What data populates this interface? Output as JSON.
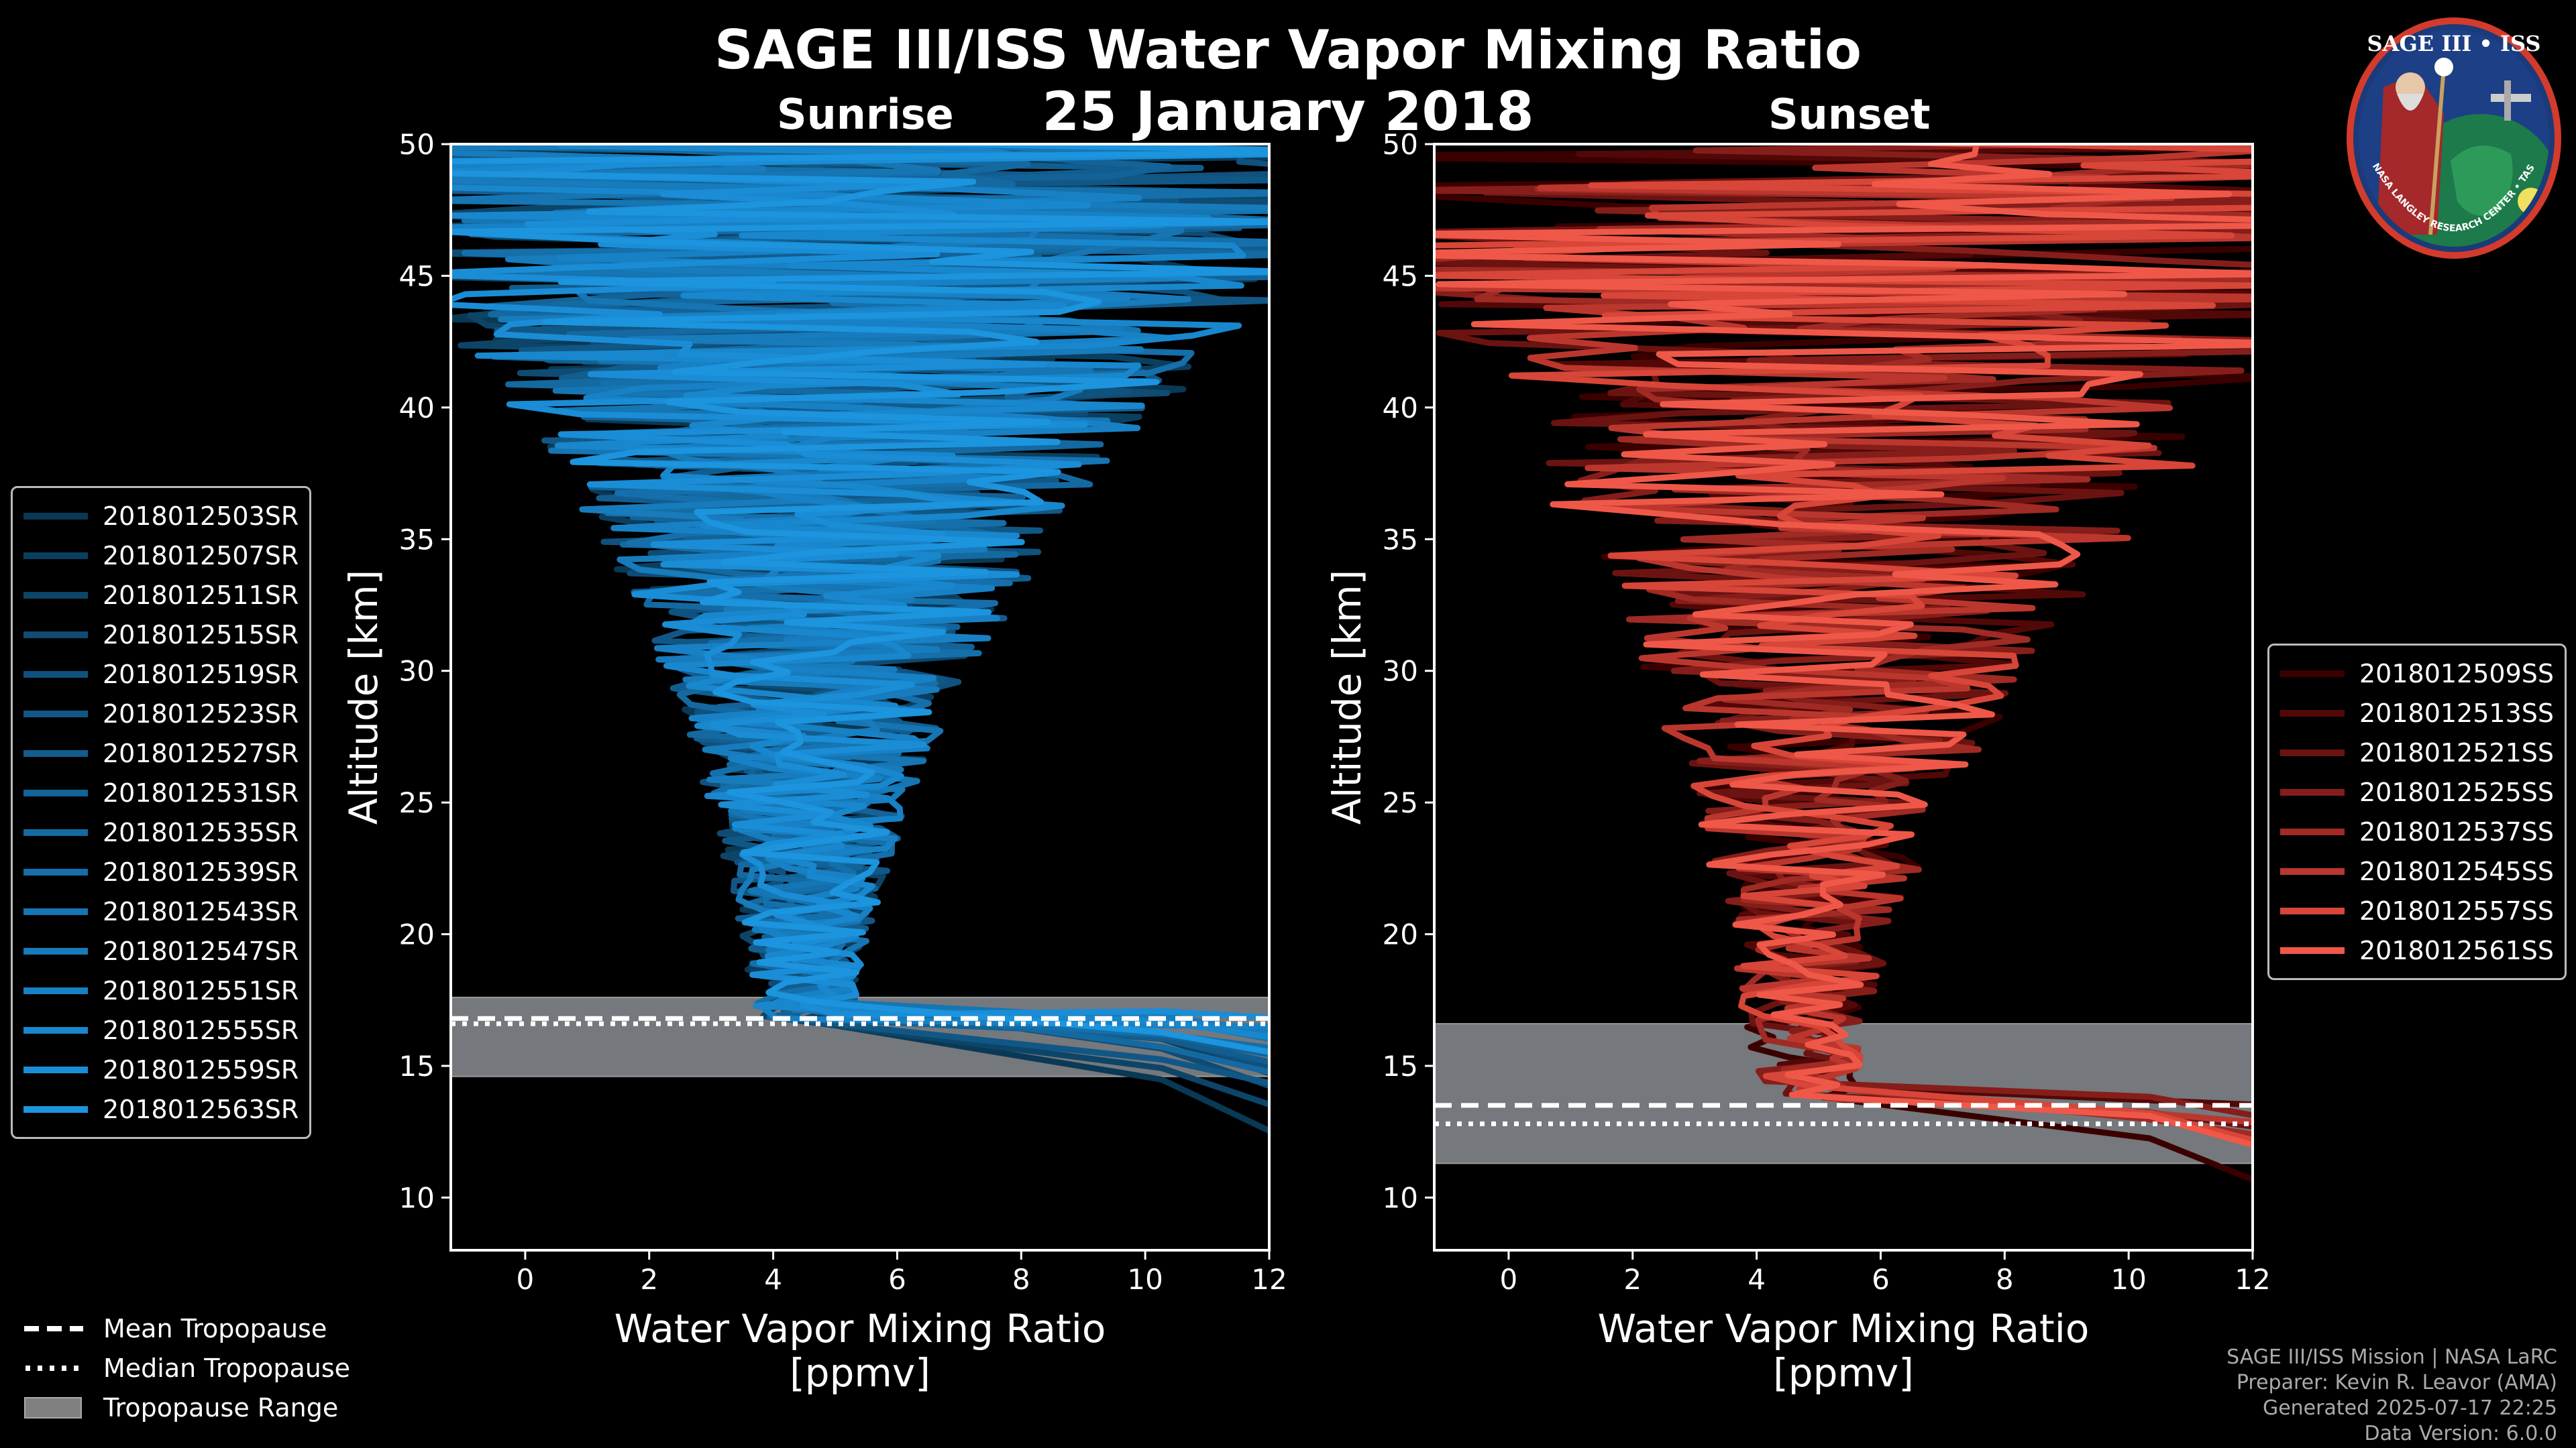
{
  "title": "SAGE III/ISS Water Vapor Mixing Ratio",
  "date": "25 January 2018",
  "logo": {
    "text": "SAGE III • ISS",
    "ring_text": "BALL • NASA LANGLEY RESEARCH CENTER • TAS-I • ESA"
  },
  "credits": [
    "SAGE III/ISS Mission | NASA LaRC",
    "Preparer: Kevin R. Leavor (AMA)",
    "Generated 2025-07-17 22:25",
    "Data Version: 6.0.0"
  ],
  "bottom_legend": [
    {
      "label": "Mean Tropopause",
      "style": "dashed"
    },
    {
      "label": "Median Tropopause",
      "style": "dotted"
    },
    {
      "label": "Tropopause Range",
      "style": "patch"
    }
  ],
  "chart_data": [
    {
      "type": "line",
      "subtitle": "Sunrise",
      "xlabel": "Water Vapor Mixing Ratio\n[ppmv]",
      "xlabel_lines": [
        "Water Vapor Mixing Ratio",
        "[ppmv]"
      ],
      "ylabel": "Altitude [km]",
      "xlim": [
        -1.2,
        12
      ],
      "ylim": [
        8,
        50
      ],
      "xticks": [
        "0",
        "2",
        "4",
        "6",
        "8",
        "10",
        "12"
      ],
      "yticks": [
        "10",
        "15",
        "20",
        "25",
        "30",
        "35",
        "40",
        "45",
        "50"
      ],
      "tropopause": {
        "mean": 16.8,
        "median": 16.6,
        "min": 14.6,
        "max": 17.6
      },
      "spread": {
        "center_top": 5.5,
        "center_mid": 4.5,
        "width_top": 9,
        "width_mid": 2.6,
        "low_alt": 17
      },
      "series": [
        {
          "name": "2018012503SR",
          "color": "#093955",
          "tail_x": 12,
          "tail_alt": 12.2
        },
        {
          "name": "2018012507SR",
          "color": "#0b3f5f",
          "tail_x": 12,
          "tail_alt": 14.5
        },
        {
          "name": "2018012511SR",
          "color": "#0d4569",
          "tail_x": 12,
          "tail_alt": 13.3
        },
        {
          "name": "2018012515SR",
          "color": "#0f4b73",
          "tail_x": 12,
          "tail_alt": 14.0
        },
        {
          "name": "2018012519SR",
          "color": "#10517d",
          "tail_x": 12,
          "tail_alt": 14.8
        },
        {
          "name": "2018012523SR",
          "color": "#115786",
          "tail_x": 12,
          "tail_alt": 14.2
        },
        {
          "name": "2018012527SR",
          "color": "#125d8f",
          "tail_x": 12,
          "tail_alt": 15.0
        },
        {
          "name": "2018012531SR",
          "color": "#136398",
          "tail_x": 12,
          "tail_alt": 15.3
        },
        {
          "name": "2018012535SR",
          "color": "#1469a1",
          "tail_x": 12,
          "tail_alt": 14.6
        },
        {
          "name": "2018012539SR",
          "color": "#156faa",
          "tail_x": 12,
          "tail_alt": 15.6
        },
        {
          "name": "2018012543SR",
          "color": "#1675b3",
          "tail_x": 12,
          "tail_alt": 15.9
        },
        {
          "name": "2018012547SR",
          "color": "#177bbc",
          "tail_x": 12,
          "tail_alt": 16.2
        },
        {
          "name": "2018012551SR",
          "color": "#1881c5",
          "tail_x": 12,
          "tail_alt": 16.5
        },
        {
          "name": "2018012555SR",
          "color": "#1987cd",
          "tail_x": 12,
          "tail_alt": 16.0
        },
        {
          "name": "2018012559SR",
          "color": "#1a8dd6",
          "tail_x": 12,
          "tail_alt": 16.8
        },
        {
          "name": "2018012563SR",
          "color": "#1c94de",
          "tail_x": 12,
          "tail_alt": 15.4
        }
      ]
    },
    {
      "type": "line",
      "subtitle": "Sunset",
      "xlabel": "Water Vapor Mixing Ratio\n[ppmv]",
      "xlabel_lines": [
        "Water Vapor Mixing Ratio",
        "[ppmv]"
      ],
      "ylabel": "Altitude [km]",
      "xlim": [
        -1.2,
        12
      ],
      "ylim": [
        8,
        50
      ],
      "xticks": [
        "0",
        "2",
        "4",
        "6",
        "8",
        "10",
        "12"
      ],
      "yticks": [
        "10",
        "15",
        "20",
        "25",
        "30",
        "35",
        "40",
        "45",
        "50"
      ],
      "tropopause": {
        "mean": 13.5,
        "median": 12.8,
        "min": 11.3,
        "max": 16.6
      },
      "spread": {
        "center_top": 6.5,
        "center_mid": 4.8,
        "width_top": 10,
        "width_mid": 3.0,
        "low_alt": 14
      },
      "series": [
        {
          "name": "2018012509SS",
          "color": "#3a0000",
          "tail_x": 12,
          "tail_alt": 10.4
        },
        {
          "name": "2018012513SS",
          "color": "#520807",
          "tail_x": 12,
          "tail_alt": 13.5
        },
        {
          "name": "2018012521SS",
          "color": "#6b1311",
          "tail_x": 12,
          "tail_alt": 12.6
        },
        {
          "name": "2018012525SS",
          "color": "#851e1a",
          "tail_x": 12,
          "tail_alt": 13.0
        },
        {
          "name": "2018012537SS",
          "color": "#a02a24",
          "tail_x": 12,
          "tail_alt": 12.3
        },
        {
          "name": "2018012545SS",
          "color": "#bb372e",
          "tail_x": 12,
          "tail_alt": 12.8
        },
        {
          "name": "2018012557SS",
          "color": "#d74638",
          "tail_x": 12,
          "tail_alt": 12.0
        },
        {
          "name": "2018012561SS",
          "color": "#ef5848",
          "tail_x": 12,
          "tail_alt": 11.8
        }
      ]
    }
  ]
}
